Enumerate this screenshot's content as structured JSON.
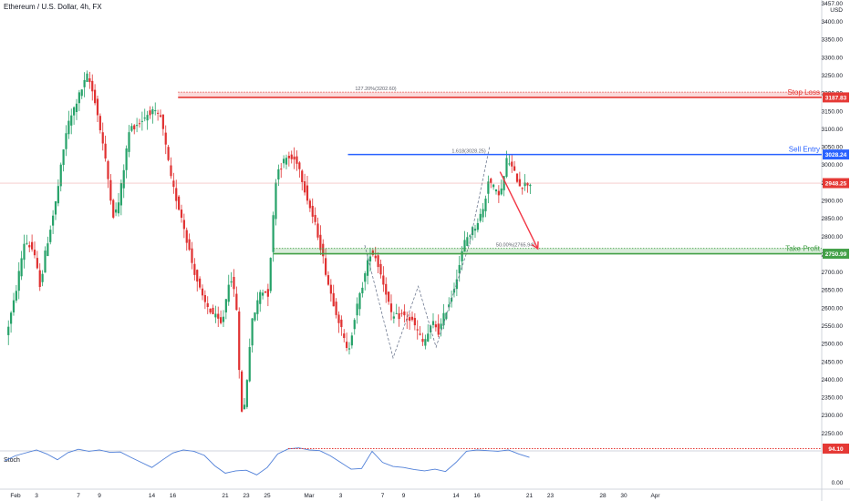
{
  "header": {
    "title": "Ethereum / U.S. Dollar, 4h, FX"
  },
  "chart_data": {
    "type": "candlestick",
    "currency_label": "USD",
    "y_range": [
      2200,
      3460
    ],
    "y_ticks": [
      3400,
      3350,
      3300,
      3250,
      3200,
      3150,
      3100,
      3050,
      3000,
      2950,
      2900,
      2850,
      2800,
      2750,
      2700,
      2650,
      2600,
      2550,
      2500,
      2450,
      2400,
      2350,
      2300,
      2250
    ],
    "y_tick_labels": [
      "3400.00",
      "3350.00",
      "3300.00",
      "3250.00",
      "3200.00",
      "3150.00",
      "3100.00",
      "3050.00",
      "3000.00",
      "2950.00",
      "2900.00",
      "2850.00",
      "2800.00",
      "2750.00",
      "2700.00",
      "2650.00",
      "2600.00",
      "2550.00",
      "2500.00",
      "2450.00",
      "2400.00",
      "2350.00",
      "2300.00",
      "2250.00"
    ],
    "top_axis_label": "3457.00",
    "x_ticks": [
      {
        "label": "Feb",
        "day": 0
      },
      {
        "label": "3",
        "day": 2
      },
      {
        "label": "7",
        "day": 6
      },
      {
        "label": "9",
        "day": 8
      },
      {
        "label": "14",
        "day": 13
      },
      {
        "label": "16",
        "day": 15
      },
      {
        "label": "21",
        "day": 20
      },
      {
        "label": "23",
        "day": 22
      },
      {
        "label": "25",
        "day": 24
      },
      {
        "label": "Mar",
        "day": 28
      },
      {
        "label": "3",
        "day": 31
      },
      {
        "label": "7",
        "day": 35
      },
      {
        "label": "9",
        "day": 37
      },
      {
        "label": "14",
        "day": 42
      },
      {
        "label": "16",
        "day": 44
      },
      {
        "label": "21",
        "day": 49
      },
      {
        "label": "23",
        "day": 51
      },
      {
        "label": "28",
        "day": 56
      },
      {
        "label": "30",
        "day": 58
      },
      {
        "label": "Apr",
        "day": 61
      }
    ],
    "price_path": [
      [
        -0.8,
        2520
      ],
      [
        0,
        2620
      ],
      [
        1,
        2790
      ],
      [
        1.8,
        2760
      ],
      [
        2.5,
        2660
      ],
      [
        3,
        2760
      ],
      [
        4,
        2900
      ],
      [
        5,
        3100
      ],
      [
        6,
        3180
      ],
      [
        7,
        3250
      ],
      [
        7.7,
        3180
      ],
      [
        8.5,
        3050
      ],
      [
        9,
        2950
      ],
      [
        9.5,
        2850
      ],
      [
        10,
        2900
      ],
      [
        11,
        3100
      ],
      [
        12,
        3120
      ],
      [
        13,
        3150
      ],
      [
        14,
        3130
      ],
      [
        15,
        2950
      ],
      [
        16,
        2850
      ],
      [
        17,
        2720
      ],
      [
        18,
        2620
      ],
      [
        19,
        2580
      ],
      [
        19.8,
        2550
      ],
      [
        20.6,
        2700
      ],
      [
        21.2,
        2600
      ],
      [
        21.6,
        2310
      ],
      [
        22,
        2330
      ],
      [
        22.6,
        2550
      ],
      [
        23.5,
        2650
      ],
      [
        24.2,
        2640
      ],
      [
        25,
        2980
      ],
      [
        26,
        3020
      ],
      [
        27,
        3010
      ],
      [
        28,
        2900
      ],
      [
        29,
        2800
      ],
      [
        30,
        2660
      ],
      [
        31,
        2560
      ],
      [
        31.8,
        2470
      ],
      [
        32.5,
        2580
      ],
      [
        33,
        2640
      ],
      [
        34,
        2760
      ],
      [
        34.5,
        2740
      ],
      [
        35.5,
        2640
      ],
      [
        36,
        2570
      ],
      [
        37,
        2580
      ],
      [
        38,
        2560
      ],
      [
        39,
        2500
      ],
      [
        40,
        2560
      ],
      [
        40.5,
        2530
      ],
      [
        41,
        2580
      ],
      [
        41.8,
        2640
      ],
      [
        42.2,
        2690
      ],
      [
        43,
        2790
      ],
      [
        44,
        2830
      ],
      [
        44.8,
        2880
      ],
      [
        45.2,
        2960
      ],
      [
        46,
        2920
      ],
      [
        46.5,
        2930
      ],
      [
        47,
        3020
      ],
      [
        47.6,
        2980
      ],
      [
        48.3,
        2940
      ],
      [
        49,
        2948
      ]
    ],
    "fib_zigzag": [
      [
        33.3,
        2775
      ],
      [
        36,
        2460
      ],
      [
        38.4,
        2660
      ],
      [
        40.1,
        2490
      ],
      [
        43.3,
        2780
      ],
      [
        45.2,
        3050
      ]
    ],
    "levels": [
      {
        "name": "Stop Loss",
        "price": 3187.83,
        "label": "3187.83",
        "color": "#e53935",
        "x_start_day": 15.5,
        "fib_price": 3202.6,
        "fib_text": "127.20%(3202.60)"
      },
      {
        "name": "Sell Entry",
        "price": 3028.24,
        "label": "3028.24",
        "color": "#2962ff",
        "x_start_day": 31.7,
        "fib_price": 3028.24,
        "fib_text": "1.618(3028.25)"
      },
      {
        "name": "Take Profit",
        "price": 2750.99,
        "label": "2750.99",
        "color": "#43a047",
        "x_start_day": 24.6,
        "fib_price": 2765.94,
        "fib_text": "50.00%(2765.94)"
      }
    ],
    "current_price": {
      "price": 2948.25,
      "label": "2948.25"
    },
    "projection_arrow": {
      "from": {
        "day": 46.2,
        "price": 2980
      },
      "to": {
        "day": 49.8,
        "price": 2765
      }
    },
    "stoch": {
      "label": "Stoch",
      "level_label": "94.10",
      "axis_label": "0.00",
      "path": [
        [
          -1,
          60
        ],
        [
          0,
          75
        ],
        [
          2,
          92
        ],
        [
          3,
          80
        ],
        [
          4,
          63
        ],
        [
          5,
          84
        ],
        [
          6,
          94
        ],
        [
          7,
          88
        ],
        [
          8,
          92
        ],
        [
          9,
          85
        ],
        [
          10,
          86
        ],
        [
          11,
          70
        ],
        [
          12,
          55
        ],
        [
          13,
          40
        ],
        [
          14,
          62
        ],
        [
          15,
          83
        ],
        [
          16,
          92
        ],
        [
          17,
          88
        ],
        [
          18,
          76
        ],
        [
          19,
          45
        ],
        [
          20,
          23
        ],
        [
          21,
          30
        ],
        [
          22,
          32
        ],
        [
          23,
          18
        ],
        [
          24,
          40
        ],
        [
          25,
          80
        ],
        [
          26,
          95
        ],
        [
          27,
          98
        ],
        [
          28,
          92
        ],
        [
          29,
          90
        ],
        [
          30,
          75
        ],
        [
          31,
          55
        ],
        [
          32,
          35
        ],
        [
          33,
          37
        ],
        [
          34,
          88
        ],
        [
          35,
          55
        ],
        [
          36,
          43
        ],
        [
          37,
          40
        ],
        [
          38,
          34
        ],
        [
          39,
          30
        ],
        [
          40,
          35
        ],
        [
          41,
          28
        ],
        [
          42,
          55
        ],
        [
          43,
          88
        ],
        [
          44,
          92
        ],
        [
          45,
          90
        ],
        [
          46,
          88
        ],
        [
          47,
          92
        ],
        [
          48,
          80
        ],
        [
          49,
          70
        ]
      ]
    }
  }
}
